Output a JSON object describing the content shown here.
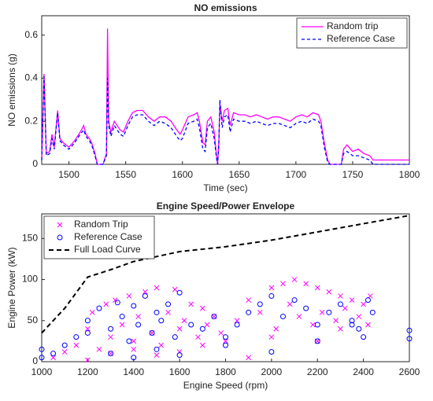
{
  "chart_data": [
    {
      "type": "line",
      "title": "NO emissions",
      "xlabel": "Time (sec)",
      "ylabel": "NO emissions (g)",
      "xlim": [
        1476,
        1800
      ],
      "xticks": [
        1500,
        1550,
        1600,
        1650,
        1700,
        1750,
        1800
      ],
      "ylim": [
        0,
        0.69
      ],
      "yticks": [
        0,
        0.2,
        0.4,
        0.6
      ],
      "legend": "northeast",
      "x": [
        1476,
        1478,
        1480,
        1483,
        1485,
        1487,
        1490,
        1492,
        1495,
        1500,
        1505,
        1510,
        1513,
        1515,
        1518,
        1520,
        1523,
        1525,
        1530,
        1533,
        1534,
        1535,
        1537,
        1540,
        1545,
        1548,
        1552,
        1556,
        1560,
        1565,
        1570,
        1575,
        1580,
        1585,
        1590,
        1595,
        1598,
        1600,
        1605,
        1610,
        1613,
        1615,
        1618,
        1620,
        1622,
        1625,
        1628,
        1630,
        1631,
        1632,
        1633,
        1635,
        1637,
        1640,
        1642,
        1645,
        1650,
        1655,
        1660,
        1665,
        1670,
        1675,
        1680,
        1685,
        1690,
        1695,
        1700,
        1705,
        1710,
        1715,
        1720,
        1722,
        1725,
        1728,
        1730,
        1735,
        1740,
        1742,
        1745,
        1750,
        1755,
        1760,
        1765,
        1768,
        1770,
        1800
      ],
      "series": [
        {
          "name": "Random trip",
          "color": "#ff00ff",
          "line_style": "solid",
          "values": [
            0.02,
            0.42,
            0.05,
            0.06,
            0.14,
            0.08,
            0.25,
            0.12,
            0.1,
            0.08,
            0.11,
            0.15,
            0.18,
            0.14,
            0.12,
            0.1,
            0.05,
            0,
            0,
            0.05,
            0.63,
            0.2,
            0.15,
            0.2,
            0.16,
            0.15,
            0.2,
            0.24,
            0.25,
            0.25,
            0.22,
            0.2,
            0.22,
            0.22,
            0.2,
            0.16,
            0.14,
            0.16,
            0.22,
            0.23,
            0.24,
            0.2,
            0.1,
            0.09,
            0.2,
            0.22,
            0.15,
            0.04,
            0,
            0.1,
            0.28,
            0.2,
            0.25,
            0.26,
            0.18,
            0.24,
            0.23,
            0.23,
            0.22,
            0.23,
            0.22,
            0.21,
            0.22,
            0.22,
            0.21,
            0.2,
            0.22,
            0.23,
            0.22,
            0.24,
            0.23,
            0.2,
            0.1,
            0.02,
            0,
            0,
            0,
            0.07,
            0.09,
            0.06,
            0.07,
            0.05,
            0.04,
            0.02,
            0.02,
            0.02
          ]
        },
        {
          "name": "Reference Case",
          "color": "#0000ff",
          "line_style": "dashed",
          "values": [
            0.02,
            0.41,
            0.04,
            0.05,
            0.12,
            0.07,
            0.24,
            0.11,
            0.09,
            0.07,
            0.1,
            0.14,
            0.16,
            0.13,
            0.11,
            0.09,
            0.04,
            0,
            0,
            0.04,
            0.4,
            0.18,
            0.13,
            0.18,
            0.14,
            0.13,
            0.18,
            0.22,
            0.23,
            0.23,
            0.2,
            0.18,
            0.2,
            0.19,
            0.17,
            0.13,
            0.11,
            0.12,
            0.19,
            0.2,
            0.21,
            0.17,
            0.07,
            0.06,
            0.17,
            0.19,
            0.12,
            0.03,
            0,
            0.08,
            0.3,
            0.17,
            0.22,
            0.23,
            0.15,
            0.21,
            0.2,
            0.2,
            0.19,
            0.2,
            0.19,
            0.18,
            0.19,
            0.19,
            0.18,
            0.17,
            0.19,
            0.2,
            0.19,
            0.21,
            0.2,
            0.18,
            0.08,
            0.01,
            0,
            0,
            0,
            0.05,
            0.06,
            0.04,
            0.04,
            0.03,
            0.02,
            0,
            0,
            0
          ]
        }
      ]
    },
    {
      "type": "scatter",
      "title": "Engine Speed/Power Envelope",
      "xlabel": "Engine Speed (rpm)",
      "ylabel": "Engine Power (kW)",
      "xlim": [
        1000,
        2600
      ],
      "xticks": [
        1000,
        1200,
        1400,
        1600,
        1800,
        2000,
        2200,
        2400,
        2600
      ],
      "ylim": [
        0,
        180
      ],
      "yticks": [
        0,
        50,
        100,
        150
      ],
      "legend": "northwest",
      "series": [
        {
          "name": "Random Trip",
          "color": "#ff00ff",
          "marker": "x",
          "x": [
            1050,
            1100,
            1150,
            1200,
            1220,
            1250,
            1280,
            1300,
            1320,
            1350,
            1380,
            1400,
            1420,
            1450,
            1480,
            1500,
            1520,
            1550,
            1580,
            1600,
            1620,
            1650,
            1680,
            1700,
            1720,
            1750,
            1780,
            1800,
            1850,
            1900,
            1950,
            2000,
            2020,
            2050,
            2080,
            2100,
            2120,
            2150,
            2180,
            2200,
            2220,
            2250,
            2280,
            2300,
            2320,
            2350,
            2380,
            2400,
            2420,
            2430,
            1300,
            1400,
            1500,
            1600,
            1700,
            1900,
            2000,
            2200,
            2300,
            1200
          ],
          "values": [
            5,
            12,
            20,
            40,
            60,
            15,
            70,
            30,
            75,
            45,
            80,
            25,
            55,
            85,
            35,
            90,
            20,
            60,
            88,
            40,
            50,
            70,
            30,
            65,
            45,
            55,
            35,
            25,
            50,
            75,
            60,
            90,
            40,
            95,
            70,
            100,
            55,
            95,
            45,
            90,
            60,
            85,
            50,
            80,
            65,
            75,
            55,
            70,
            45,
            80,
            10,
            15,
            8,
            12,
            20,
            5,
            30,
            25,
            40,
            2
          ]
        },
        {
          "name": "Reference Case",
          "color": "#0000ff",
          "marker": "o",
          "x": [
            1000,
            1000,
            1050,
            1100,
            1150,
            1200,
            1250,
            1300,
            1330,
            1350,
            1380,
            1400,
            1420,
            1450,
            1480,
            1500,
            1520,
            1550,
            1580,
            1600,
            1650,
            1700,
            1750,
            1800,
            1850,
            1900,
            1950,
            2000,
            2050,
            2100,
            2150,
            2200,
            2250,
            2300,
            2350,
            2380,
            2400,
            2420,
            2440,
            2600,
            2600,
            1300,
            1400,
            1500,
            1600,
            1800,
            2000,
            2200,
            2350,
            1200
          ],
          "values": [
            5,
            15,
            10,
            20,
            30,
            50,
            65,
            40,
            72,
            55,
            25,
            68,
            45,
            80,
            35,
            60,
            50,
            70,
            30,
            84,
            45,
            40,
            55,
            30,
            45,
            60,
            70,
            80,
            55,
            75,
            65,
            45,
            60,
            70,
            50,
            40,
            30,
            75,
            60,
            28,
            38,
            10,
            5,
            15,
            8,
            20,
            12,
            25,
            45,
            35
          ]
        },
        {
          "name": "Full Load Curve",
          "color": "#000000",
          "type": "line",
          "line_style": "dashed",
          "x": [
            1000,
            1100,
            1200,
            1300,
            1400,
            1500,
            1600,
            1800,
            2000,
            2200,
            2400,
            2600
          ],
          "values": [
            35,
            65,
            103,
            112,
            122,
            128,
            134,
            140,
            148,
            158,
            168,
            178
          ]
        }
      ]
    }
  ]
}
